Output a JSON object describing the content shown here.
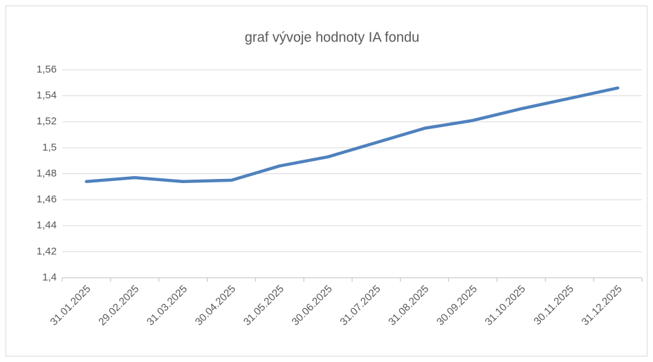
{
  "chart_data": {
    "type": "line",
    "title": "graf vývoje hodnoty IA fondu",
    "categories": [
      "31.01.2025",
      "29.02.2025",
      "31.03.2025",
      "30.04.2025",
      "31.05.2025",
      "30.06.2025",
      "31.07.2025",
      "31.08.2025",
      "30.09.2025",
      "31.10.2025",
      "30.11.2025",
      "31.12.2025"
    ],
    "values": [
      1.474,
      1.477,
      1.474,
      1.475,
      1.486,
      1.493,
      1.504,
      1.515,
      1.521,
      1.53,
      1.538,
      1.546
    ],
    "color": "#4f81bd",
    "ylim": [
      1.4,
      1.56
    ],
    "yticks": [
      {
        "value": 1.4,
        "label": "1,4"
      },
      {
        "value": 1.42,
        "label": "1,42"
      },
      {
        "value": 1.44,
        "label": "1,44"
      },
      {
        "value": 1.46,
        "label": "1,46"
      },
      {
        "value": 1.48,
        "label": "1,48"
      },
      {
        "value": 1.5,
        "label": "1,5"
      },
      {
        "value": 1.52,
        "label": "1,52"
      },
      {
        "value": 1.54,
        "label": "1,54"
      },
      {
        "value": 1.56,
        "label": "1,56"
      }
    ],
    "grid": true
  }
}
